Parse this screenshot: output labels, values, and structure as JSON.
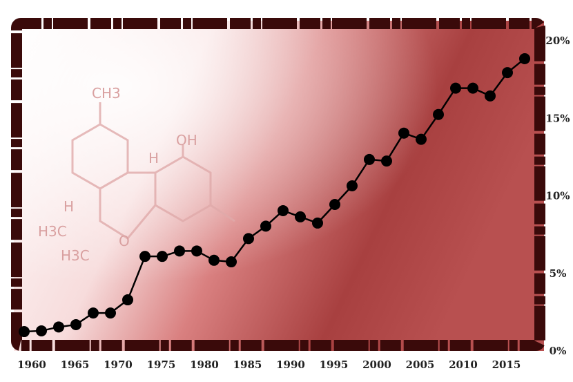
{
  "chart_data": {
    "type": "line",
    "title": "",
    "xlabel": "",
    "ylabel": "",
    "x": [
      1958,
      1960,
      1962,
      1964,
      1966,
      1968,
      1970,
      1972,
      1974,
      1976,
      1978,
      1980,
      1982,
      1984,
      1986,
      1988,
      1990,
      1992,
      1994,
      1996,
      1998,
      2000,
      2002,
      2004,
      2006,
      2008,
      2010,
      2012,
      2014,
      2016
    ],
    "series": [
      {
        "values": [
          1.2,
          1.25,
          1.5,
          1.65,
          2.4,
          2.4,
          3.25,
          6.05,
          6.05,
          6.4,
          6.4,
          5.8,
          5.7,
          7.2,
          8.0,
          9.0,
          8.6,
          8.2,
          9.4,
          10.6,
          12.3,
          12.2,
          14.0,
          13.6,
          15.2,
          16.9,
          16.9,
          16.4,
          17.9,
          18.8
        ]
      }
    ],
    "xticks": [
      "1960",
      "1965",
      "1970",
      "1975",
      "1980",
      "1985",
      "1990",
      "1995",
      "2000",
      "2005",
      "2010",
      "2015"
    ],
    "xtick_values": [
      1960,
      1965,
      1970,
      1975,
      1980,
      1985,
      1990,
      1995,
      2000,
      2005,
      2010,
      2015
    ],
    "yticks": [
      "0%",
      "5%",
      "10%",
      "15%",
      "20%"
    ],
    "ytick_values": [
      0,
      5,
      10,
      15,
      20
    ],
    "ylim": [
      0,
      20
    ],
    "grid": false,
    "y_axis_side": "right",
    "colors": {
      "line": "#000000",
      "marker": "#000000",
      "frame": "#3a0a0a",
      "background_light": "#ffffff",
      "background_dark": "#8a2a2a"
    }
  },
  "illustration": {
    "molecule_labels": [
      "CH3",
      "OH",
      "H",
      "H",
      "H3C",
      "H3C",
      "O"
    ]
  }
}
